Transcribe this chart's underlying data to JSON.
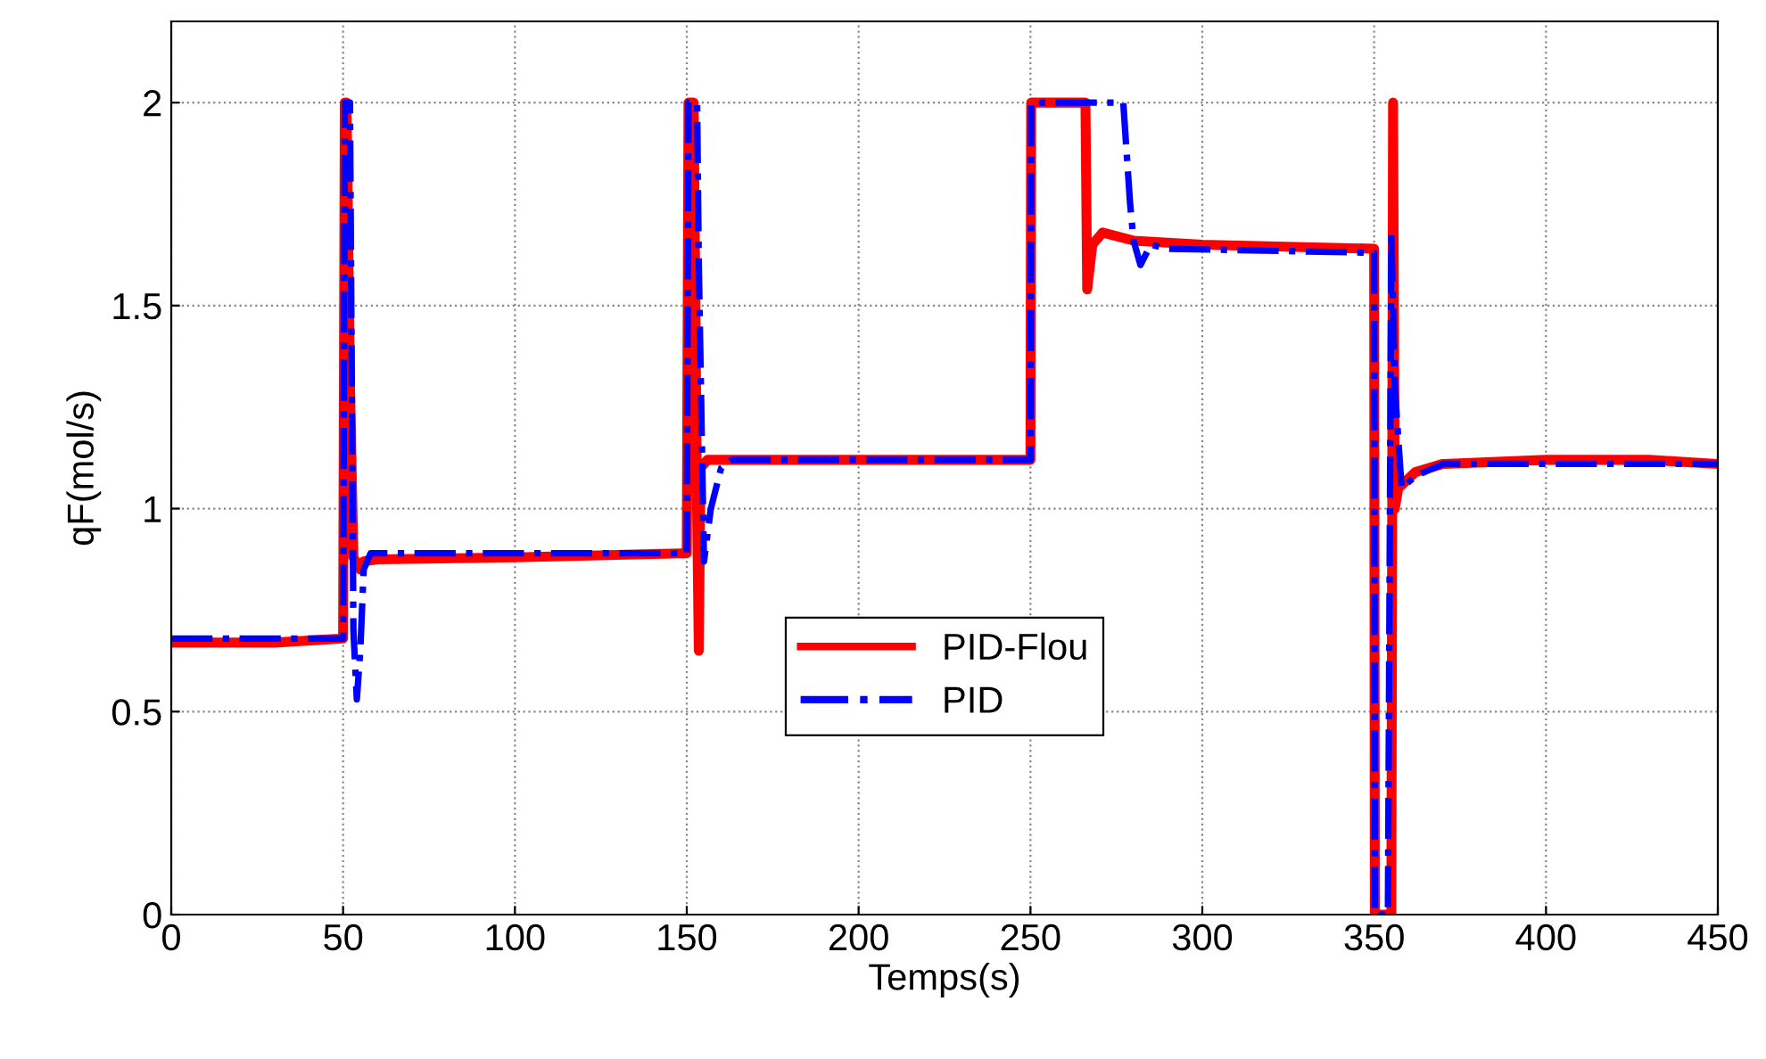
{
  "chart_data": {
    "type": "line",
    "xlabel": "Temps(s)",
    "ylabel": "qF(mol/s)",
    "xlim": [
      0,
      450
    ],
    "ylim": [
      0,
      2.2
    ],
    "xticks": [
      0,
      50,
      100,
      150,
      200,
      250,
      300,
      350,
      400,
      450
    ],
    "yticks": [
      0,
      0.5,
      1,
      1.5,
      2
    ],
    "grid": true,
    "legend": "bottom",
    "marker": "none",
    "series": [
      {
        "name": "PID-Flou",
        "color": "#ff0000",
        "line_style": "solid",
        "x": [
          0,
          30,
          50,
          50.5,
          51,
          52,
          53,
          55,
          56,
          60,
          100,
          150,
          150.5,
          152,
          153,
          153.5,
          154,
          156,
          250,
          250.2,
          266,
          266.5,
          268,
          271,
          280,
          300,
          350,
          350.2,
          355,
          355.5,
          356,
          357,
          362,
          370,
          400,
          430,
          450
        ],
        "values": [
          0.67,
          0.67,
          0.68,
          2.0,
          2.0,
          1.3,
          0.88,
          0.85,
          0.87,
          0.875,
          0.88,
          0.89,
          2.0,
          2.0,
          1.0,
          0.65,
          1.1,
          1.12,
          1.12,
          2.0,
          2.0,
          1.54,
          1.65,
          1.68,
          1.66,
          1.65,
          1.64,
          0,
          0,
          2.0,
          1.0,
          1.05,
          1.09,
          1.11,
          1.12,
          1.12,
          1.11
        ]
      },
      {
        "name": "PID",
        "color": "#0000ff",
        "line_style": "dashdot",
        "x": [
          0,
          50,
          50.5,
          52,
          53,
          54,
          55,
          56,
          58,
          150,
          150.5,
          153,
          153.5,
          155,
          157,
          160,
          163,
          250,
          250.2,
          277,
          279,
          280,
          282,
          285,
          290,
          350,
          350.2,
          354,
          355,
          356,
          358,
          362,
          370,
          450
        ],
        "values": [
          0.68,
          0.68,
          2.0,
          2.0,
          0.7,
          0.53,
          0.65,
          0.85,
          0.89,
          0.89,
          2.0,
          2.0,
          1.6,
          0.87,
          1.0,
          1.1,
          1.12,
          1.12,
          2.0,
          2.0,
          1.75,
          1.66,
          1.6,
          1.65,
          1.64,
          1.63,
          0,
          0,
          1.68,
          1.3,
          1.05,
          1.08,
          1.11,
          1.11
        ]
      }
    ]
  }
}
